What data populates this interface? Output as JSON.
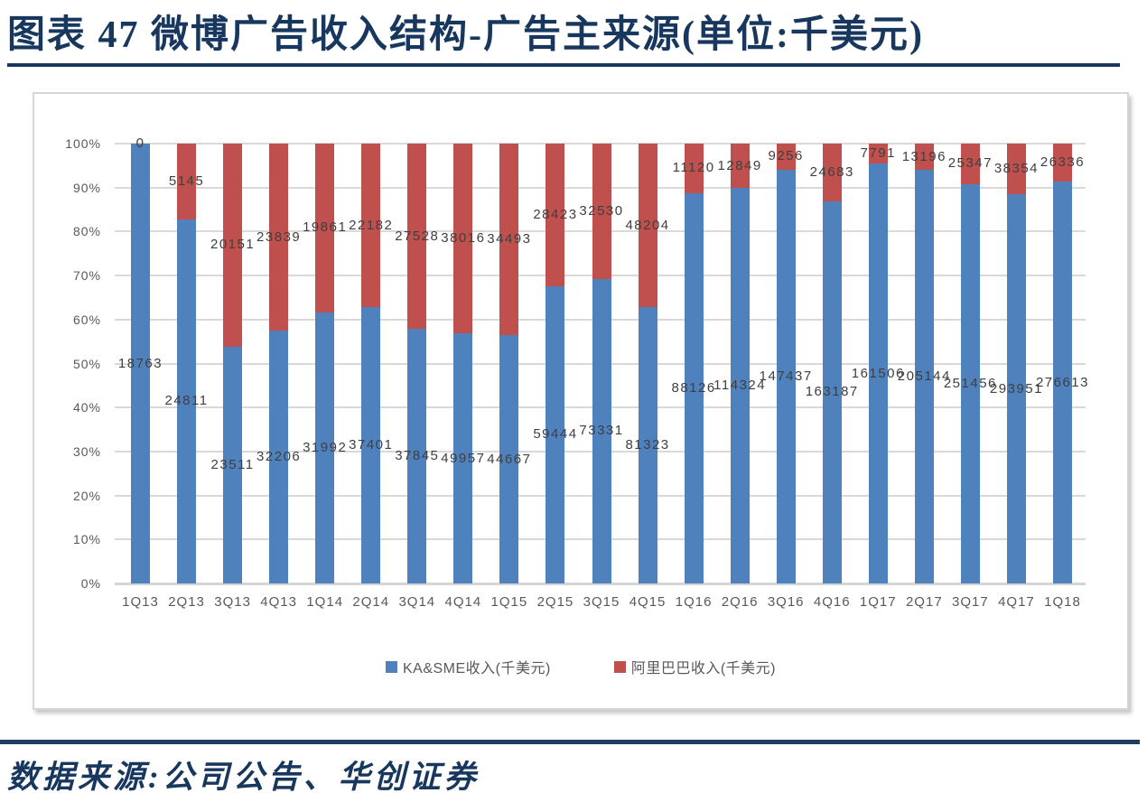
{
  "page": {
    "title": "图表 47  微博广告收入结构-广告主来源(单位:千美元)",
    "source": "数据来源:公司公告、华创证券"
  },
  "chart_data": {
    "type": "bar",
    "stacking": "percent",
    "grid": true,
    "legend_position": "bottom",
    "categories": [
      "1Q13",
      "2Q13",
      "3Q13",
      "4Q13",
      "1Q14",
      "2Q14",
      "3Q14",
      "4Q14",
      "1Q15",
      "2Q15",
      "3Q15",
      "4Q15",
      "1Q16",
      "2Q16",
      "3Q16",
      "4Q16",
      "1Q17",
      "2Q17",
      "3Q17",
      "4Q17",
      "1Q18"
    ],
    "series": [
      {
        "name": "KA&SME收入(千美元)",
        "color": "#4f81bd",
        "values": [
          18763,
          24811,
          23511,
          32206,
          31992,
          37401,
          37845,
          49957,
          44667,
          59444,
          73331,
          81323,
          88126,
          114324,
          147437,
          163187,
          161506,
          205144,
          251456,
          293951,
          276613
        ]
      },
      {
        "name": "阿里巴巴收入(千美元)",
        "color": "#c0504d",
        "values": [
          0,
          5145,
          20151,
          23839,
          19861,
          22182,
          27528,
          38016,
          34493,
          28423,
          32530,
          48204,
          11120,
          12849,
          9256,
          24683,
          7791,
          13196,
          25347,
          38354,
          26336
        ]
      }
    ],
    "y_axis": {
      "tick_labels": [
        "0%",
        "10%",
        "20%",
        "30%",
        "40%",
        "50%",
        "60%",
        "70%",
        "80%",
        "90%",
        "100%"
      ],
      "min": 0,
      "max": 100,
      "unit": "%"
    },
    "colors": {
      "grid": "#d9d9d9",
      "axis_text": "#595959",
      "data_label_text": "#3f3f3f",
      "title_text": "#17375e"
    }
  }
}
